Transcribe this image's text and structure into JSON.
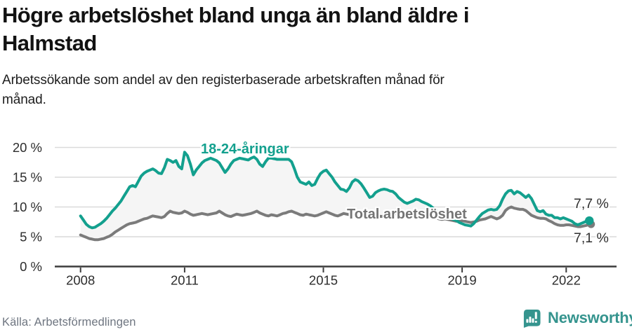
{
  "header": {
    "title_lines": [
      "Högre arbetslöshet bland unga än bland äldre i",
      "Halmstad"
    ],
    "subtitle_lines": [
      "Arbetssökande som andel av den registerbaserade arbetskraften månad för",
      "månad."
    ]
  },
  "chart_data": {
    "type": "line",
    "title": "Högre arbetslöshet bland unga än bland äldre i Halmstad",
    "unit": "%",
    "x_interval": "monthly",
    "x_range": {
      "start": "2008-01",
      "end": "2022-09"
    },
    "x_ticks": [
      2008,
      2011,
      2015,
      2019,
      2022
    ],
    "y_ticks": [
      {
        "value": 0,
        "label": "0 %"
      },
      {
        "value": 5,
        "label": "5 %"
      },
      {
        "value": 10,
        "label": "10 %"
      },
      {
        "value": 15,
        "label": "15 %"
      },
      {
        "value": 20,
        "label": "20 %"
      }
    ],
    "ylim": [
      0,
      21.8
    ],
    "grid": true,
    "band_fill": "#f5f5f5",
    "colors": {
      "axis": "#3c3c3c",
      "gridline": "#dadada",
      "tick_text": "#2d2d2d"
    },
    "series": [
      {
        "name": "18-24-åringar",
        "color": "#13a08e",
        "end_label": "7,7 %",
        "end_value": 7.7,
        "values": [
          8.5,
          7.8,
          7.1,
          6.7,
          6.5,
          6.6,
          6.9,
          7.2,
          7.6,
          8.1,
          8.7,
          9.3,
          9.8,
          10.4,
          11.0,
          11.8,
          12.6,
          13.4,
          13.6,
          13.4,
          14.3,
          15.2,
          15.7,
          16.0,
          16.2,
          16.4,
          16.1,
          15.7,
          15.6,
          16.6,
          18.0,
          17.8,
          17.5,
          17.8,
          16.8,
          16.4,
          19.2,
          18.6,
          17.2,
          15.4,
          16.2,
          16.8,
          17.4,
          17.8,
          18.0,
          18.2,
          18.0,
          17.8,
          17.4,
          16.6,
          15.8,
          16.4,
          17.2,
          17.8,
          18.0,
          18.2,
          18.1,
          18.0,
          17.9,
          18.2,
          18.4,
          18.0,
          17.2,
          16.8,
          17.6,
          18.2,
          18.2,
          18.1,
          18.0,
          18.0,
          18.0,
          18.0,
          18.0,
          17.6,
          16.4,
          15.0,
          14.2,
          14.0,
          13.8,
          14.2,
          13.6,
          13.8,
          14.8,
          15.6,
          16.0,
          16.2,
          15.6,
          15.0,
          14.2,
          13.6,
          13.0,
          12.9,
          12.6,
          13.2,
          14.2,
          14.6,
          14.4,
          13.9,
          13.2,
          12.4,
          11.6,
          11.8,
          12.4,
          12.7,
          12.9,
          13.0,
          12.9,
          12.7,
          12.6,
          12.2,
          11.6,
          11.2,
          10.8,
          10.6,
          10.8,
          11.0,
          11.3,
          11.2,
          10.9,
          10.7,
          10.5,
          10.2,
          9.8,
          9.4,
          9.0,
          8.7,
          8.5,
          8.3,
          8.1,
          7.9,
          7.7,
          7.4,
          7.2,
          7.0,
          6.9,
          6.8,
          7.2,
          7.8,
          8.4,
          8.9,
          9.2,
          9.5,
          9.6,
          9.5,
          9.6,
          10.2,
          11.3,
          12.2,
          12.7,
          12.8,
          12.2,
          12.6,
          12.4,
          12.0,
          11.6,
          12.0,
          11.4,
          10.4,
          9.4,
          9.2,
          9.4,
          8.8,
          8.6,
          8.6,
          8.2,
          8.2,
          8.0,
          8.2,
          8.0,
          7.8,
          7.6,
          7.2,
          7.0,
          7.2,
          7.4,
          7.6,
          7.7
        ]
      },
      {
        "name": "Total arbetslöshet",
        "color": "#7b7b7b",
        "end_label": "7,1 %",
        "end_value": 7.1,
        "values": [
          5.3,
          5.1,
          4.9,
          4.7,
          4.6,
          4.5,
          4.5,
          4.6,
          4.7,
          4.9,
          5.1,
          5.4,
          5.8,
          6.1,
          6.4,
          6.7,
          7.0,
          7.2,
          7.3,
          7.4,
          7.6,
          7.8,
          8.0,
          8.1,
          8.3,
          8.5,
          8.4,
          8.3,
          8.2,
          8.4,
          8.9,
          9.3,
          9.1,
          9.0,
          8.9,
          9.0,
          9.3,
          9.1,
          8.8,
          8.6,
          8.7,
          8.8,
          8.9,
          8.8,
          8.7,
          8.8,
          8.9,
          9.0,
          9.3,
          9.0,
          8.7,
          8.5,
          8.4,
          8.6,
          8.8,
          8.7,
          8.6,
          8.7,
          8.8,
          8.9,
          9.1,
          9.3,
          9.0,
          8.8,
          8.6,
          8.5,
          8.7,
          8.6,
          8.5,
          8.7,
          8.9,
          9.0,
          9.2,
          9.3,
          9.1,
          8.9,
          8.7,
          8.6,
          8.8,
          8.7,
          8.6,
          8.5,
          8.6,
          8.8,
          9.0,
          9.2,
          9.0,
          8.8,
          8.6,
          8.5,
          8.7,
          8.9,
          8.8,
          8.7,
          8.8,
          9.0,
          9.3,
          9.1,
          8.9,
          8.7,
          8.5,
          8.4,
          8.6,
          8.5,
          8.4,
          8.5,
          8.7,
          8.8,
          9.0,
          8.9,
          8.7,
          8.5,
          8.4,
          8.3,
          8.5,
          8.4,
          8.3,
          8.4,
          8.6,
          8.7,
          8.8,
          8.6,
          8.4,
          8.2,
          8.0,
          7.9,
          8.0,
          7.9,
          7.8,
          7.7,
          7.6,
          7.6,
          7.7,
          7.6,
          7.5,
          7.4,
          7.5,
          7.6,
          7.8,
          7.9,
          8.0,
          8.2,
          8.4,
          8.2,
          8.0,
          8.2,
          8.6,
          9.4,
          9.8,
          10.0,
          9.8,
          9.7,
          9.6,
          9.6,
          9.4,
          9.0,
          8.6,
          8.4,
          8.2,
          8.1,
          8.1,
          8.0,
          7.7,
          7.5,
          7.2,
          7.0,
          6.9,
          6.9,
          7.0,
          7.0,
          6.9,
          6.8,
          6.7,
          6.7,
          6.8,
          6.9,
          7.1
        ]
      }
    ]
  },
  "footer": {
    "source": "Källa: Arbetsförmedlingen",
    "brand": "Newsworthy"
  }
}
